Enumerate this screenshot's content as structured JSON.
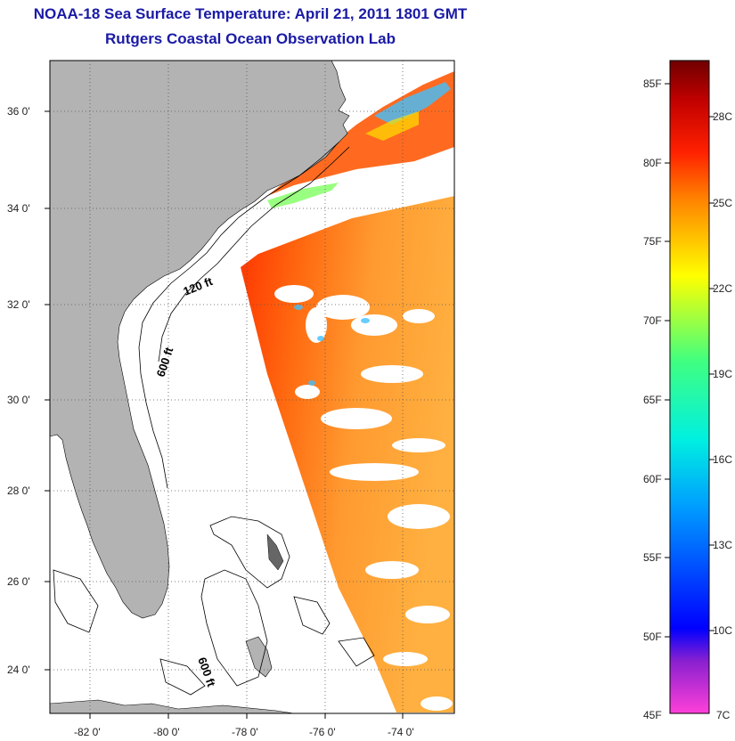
{
  "title": "NOAA-18 Sea Surface Temperature:  April 21, 2011 1801 GMT",
  "subtitle": "Rutgers Coastal Ocean Observation Lab",
  "map": {
    "lat_labels": [
      "36 0'",
      "34 0'",
      "32 0'",
      "30 0'",
      "28 0'",
      "26 0'",
      "24 0'"
    ],
    "lon_labels": [
      "-82 0'",
      "-80 0'",
      "-78 0'",
      "-76 0'",
      "-74 0'"
    ],
    "contour_labels": [
      "120 ft",
      "600 ft",
      "600 ft"
    ],
    "colors": {
      "land": "#b3b3b3",
      "ocean_no_data": "#ffffff",
      "border": "#000000"
    }
  },
  "colorbar": {
    "f_labels": [
      "85F",
      "80F",
      "75F",
      "70F",
      "65F",
      "60F",
      "55F",
      "50F",
      "45F"
    ],
    "c_labels": [
      "28C",
      "25C",
      "22C",
      "19C",
      "16C",
      "13C",
      "10C",
      "7C"
    ],
    "range_f": [
      45,
      86
    ],
    "colors": [
      "#ff40d8",
      "#8a20d0",
      "#0000ff",
      "#00a0ff",
      "#00f0e0",
      "#40ff80",
      "#ffff00",
      "#ffc000",
      "#ff8000",
      "#ff2000",
      "#c00000",
      "#700000"
    ]
  }
}
